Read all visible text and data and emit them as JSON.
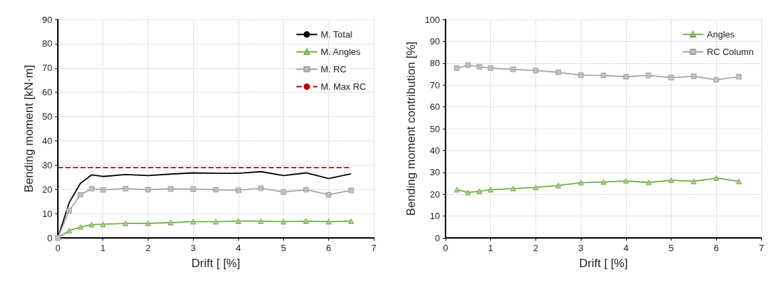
{
  "chart_data": [
    {
      "type": "line",
      "xlabel": "Drift [ [%]",
      "ylabel": "Bending moment [kN·m]",
      "x": [
        0,
        0.25,
        0.5,
        0.75,
        1,
        1.5,
        2,
        2.5,
        3,
        3.5,
        4,
        4.5,
        5,
        5.5,
        6,
        6.5
      ],
      "series": [
        {
          "name": "M. Total",
          "color": "#000000",
          "marker": "none",
          "values": [
            0,
            14.5,
            22.5,
            26,
            25.3,
            26.1,
            25.7,
            26.3,
            26.8,
            26.6,
            26.6,
            27.3,
            25.7,
            26.8,
            24.5,
            26.4
          ]
        },
        {
          "name": "M. Angles",
          "color": "#70ad47",
          "marker": "triangle",
          "values": [
            0,
            3,
            4.5,
            5.5,
            5.6,
            6,
            6,
            6.3,
            6.7,
            6.7,
            6.9,
            6.9,
            6.7,
            6.9,
            6.7,
            6.9
          ]
        },
        {
          "name": "M. RC",
          "color": "#a5a5a5",
          "marker": "square",
          "values": [
            0,
            11.2,
            17.8,
            20.3,
            19.8,
            20.3,
            19.9,
            20.2,
            20.1,
            19.9,
            19.6,
            20.5,
            18.9,
            19.9,
            17.8,
            19.6
          ]
        },
        {
          "name": "M. Max RC",
          "color": "#c00000",
          "marker": "none",
          "line_style": "dashed",
          "x": [
            0,
            6.5
          ],
          "values": [
            29,
            29
          ]
        }
      ],
      "xlim": [
        0,
        7
      ],
      "xticks": [
        0,
        1,
        2,
        3,
        4,
        5,
        6,
        7
      ],
      "ylim": [
        0,
        90
      ],
      "yticks": [
        0,
        10,
        20,
        30,
        40,
        50,
        60,
        70,
        80,
        90
      ],
      "grid": true,
      "legend": "top right"
    },
    {
      "type": "line",
      "xlabel": "Drift [ [%]",
      "ylabel": "Bending moment contribution [%]",
      "x": [
        0.25,
        0.5,
        0.75,
        1,
        1.5,
        2,
        2.5,
        3,
        3.5,
        4,
        4.5,
        5,
        5.5,
        6,
        6.5
      ],
      "series": [
        {
          "name": "Angles",
          "color": "#70ad47",
          "marker": "triangle",
          "values": [
            22.1,
            20.8,
            21.4,
            22.1,
            22.6,
            23.1,
            24,
            25.3,
            25.6,
            26.1,
            25.4,
            26.4,
            25.9,
            27.4,
            25.9
          ]
        },
        {
          "name": "RC Column",
          "color": "#a5a5a5",
          "marker": "square",
          "values": [
            77.7,
            79.1,
            78.4,
            77.7,
            77.2,
            76.6,
            75.8,
            74.5,
            74.4,
            73.8,
            74.4,
            73.4,
            74,
            72.4,
            73.8
          ]
        }
      ],
      "xlim": [
        0,
        7
      ],
      "xticks": [
        0,
        1,
        2,
        3,
        4,
        5,
        6,
        7
      ],
      "ylim": [
        0,
        100
      ],
      "yticks": [
        0,
        10,
        20,
        30,
        40,
        50,
        60,
        70,
        80,
        90,
        100
      ],
      "grid": true,
      "legend": "top right"
    }
  ]
}
